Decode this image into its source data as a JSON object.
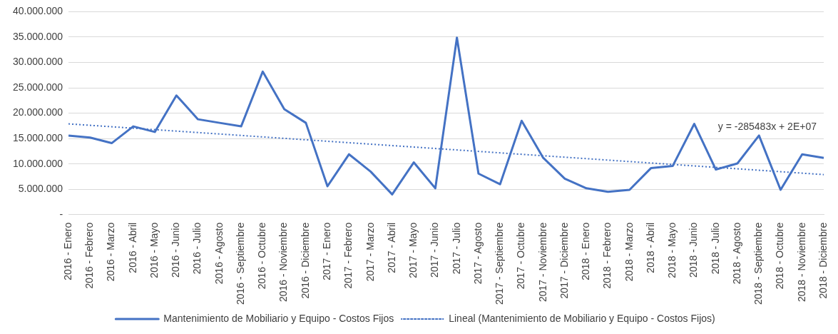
{
  "chart_data": {
    "type": "line",
    "categories": [
      "2016 - Enero",
      "2016 - Febrero",
      "2016 - Marzo",
      "2016 - Abril",
      "2016 - Mayo",
      "2016 - Junio",
      "2016 - Julio",
      "2016 - Agosto",
      "2016 - Septiembre",
      "2016 - Octubre",
      "2016 - Noviembre",
      "2016 - Diciembre",
      "2017 - Enero",
      "2017 - Febrero",
      "2017 - Marzo",
      "2017 - Abril",
      "2017 - Mayo",
      "2017 - Junio",
      "2017 - Julio",
      "2017 - Agosto",
      "2017 - Septiembre",
      "2017 - Octubre",
      "2017 - Noviembre",
      "2017 - Diciembre",
      "2018 - Enero",
      "2018 - Febrero",
      "2018 - Marzo",
      "2018 - Abril",
      "2018 - Mayo",
      "2018 - Junio",
      "2018 - Julio",
      "2018 - Agosto",
      "2018 - Septiembre",
      "2018 - Octubre",
      "2018 - Noviembre",
      "2018 - Diciembre"
    ],
    "series": [
      {
        "name": "Mantenimiento de Mobiliario y Equipo - Costos Fijos",
        "color": "#4472c4",
        "line_style": "solid",
        "values": [
          15600000,
          15200000,
          14100000,
          17400000,
          16300000,
          23500000,
          18800000,
          18100000,
          17400000,
          28200000,
          20800000,
          18100000,
          5600000,
          11900000,
          8500000,
          4000000,
          10300000,
          5200000,
          34900000,
          8100000,
          6000000,
          18500000,
          11200000,
          7100000,
          5200000,
          4500000,
          4900000,
          9200000,
          9600000,
          17900000,
          8900000,
          10100000,
          15600000,
          4900000,
          11900000,
          11200000
        ]
      },
      {
        "name": "Lineal (Mantenimiento de Mobiliario y Equipo - Costos Fijos)",
        "color": "#4472c4",
        "line_style": "dotted",
        "x": [
          "2016 - Enero",
          "2018 - Diciembre"
        ],
        "values": [
          17900000,
          7900000
        ]
      }
    ],
    "ylim": [
      0,
      40000000
    ],
    "yticks": [
      {
        "value": 0,
        "label": "-"
      },
      {
        "value": 5000000,
        "label": "5.000.000"
      },
      {
        "value": 10000000,
        "label": "10.000.000"
      },
      {
        "value": 15000000,
        "label": "15.000.000"
      },
      {
        "value": 20000000,
        "label": "20.000.000"
      },
      {
        "value": 25000000,
        "label": "25.000.000"
      },
      {
        "value": 30000000,
        "label": "30.000.000"
      },
      {
        "value": 35000000,
        "label": "35.000.000"
      },
      {
        "value": 40000000,
        "label": "40.000.000"
      }
    ],
    "grid": "y",
    "legend": "bottom",
    "marker": "none",
    "annotations": [
      "y = -285483x + 2E+07"
    ]
  }
}
